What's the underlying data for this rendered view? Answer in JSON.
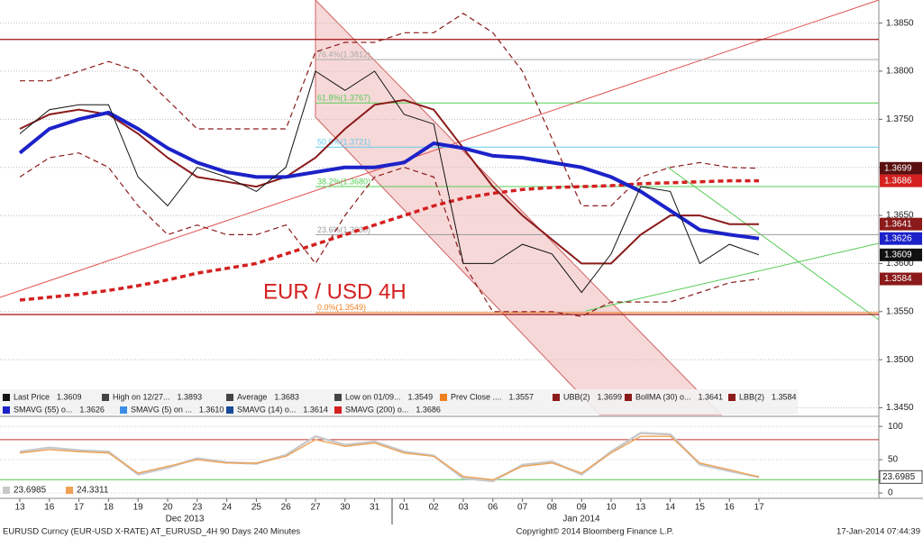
{
  "chart_data": [
    {
      "type": "line",
      "title": "EUR / USD 4H",
      "categories": [
        "13",
        "16",
        "17",
        "18",
        "19",
        "20",
        "23",
        "24",
        "25",
        "26",
        "27",
        "30",
        "31",
        "01",
        "02",
        "03",
        "06",
        "07",
        "08",
        "09",
        "10",
        "13",
        "14",
        "15",
        "16",
        "17"
      ],
      "month_labels": [
        "Dec 2013",
        "Jan 2014"
      ],
      "ylim": [
        1.3443,
        1.3874
      ],
      "yticks": [
        {
          "value": 1.345,
          "label": "1.3450"
        },
        {
          "value": 1.35,
          "label": "1.3500"
        },
        {
          "value": 1.355,
          "label": "1.3550"
        },
        {
          "value": 1.36,
          "label": "1.3600"
        },
        {
          "value": 1.365,
          "label": "1.3650"
        },
        {
          "value": 1.37,
          "label": "1.3700"
        },
        {
          "value": 1.375,
          "label": "1.3750"
        },
        {
          "value": 1.38,
          "label": "1.3800"
        },
        {
          "value": 1.385,
          "label": "1.3850"
        }
      ],
      "grid": true,
      "series": [
        {
          "name": "Last Price",
          "legend_value": "1.3609",
          "color": "#111111",
          "values": [
            1.3735,
            1.376,
            1.3765,
            1.3765,
            1.369,
            1.366,
            1.37,
            1.369,
            1.3675,
            1.37,
            1.38,
            1.378,
            1.38,
            1.3755,
            1.3745,
            1.36,
            1.36,
            1.362,
            1.361,
            1.357,
            1.361,
            1.368,
            1.3675,
            1.36,
            1.362,
            1.3609
          ]
        },
        {
          "name": "SMAVG (55) o...",
          "legend_value": "1.3626",
          "color": "#1c22c8",
          "values": [
            1.3715,
            1.374,
            1.375,
            1.3757,
            1.374,
            1.372,
            1.3705,
            1.3695,
            1.369,
            1.369,
            1.3695,
            1.37,
            1.37,
            1.3705,
            1.3725,
            1.372,
            1.3712,
            1.371,
            1.3705,
            1.37,
            1.369,
            1.3675,
            1.3655,
            1.3635,
            1.363,
            1.3626
          ]
        },
        {
          "name": "SMAVG (200) o...",
          "legend_value": "1.3686",
          "color": "#d42020",
          "dash": true,
          "values": [
            1.3562,
            1.3565,
            1.3568,
            1.3572,
            1.3577,
            1.3583,
            1.359,
            1.3595,
            1.36,
            1.361,
            1.362,
            1.363,
            1.364,
            1.365,
            1.366,
            1.3668,
            1.3673,
            1.3677,
            1.3679,
            1.368,
            1.3681,
            1.3683,
            1.3684,
            1.3685,
            1.3686,
            1.3686
          ]
        },
        {
          "name": "BollMA (30) o...",
          "legend_value": "1.3641",
          "color": "#8b1a1a",
          "values": [
            1.374,
            1.3755,
            1.376,
            1.3755,
            1.3735,
            1.371,
            1.369,
            1.3685,
            1.368,
            1.369,
            1.371,
            1.374,
            1.3765,
            1.377,
            1.376,
            1.372,
            1.368,
            1.365,
            1.3625,
            1.36,
            1.36,
            1.363,
            1.365,
            1.365,
            1.3641,
            1.3641
          ]
        },
        {
          "name": "UBB(2)",
          "legend_value": "1.3699",
          "color": "#8b1a1a",
          "dash": true,
          "values": [
            1.379,
            1.379,
            1.38,
            1.381,
            1.38,
            1.377,
            1.374,
            1.374,
            1.374,
            1.374,
            1.382,
            1.383,
            1.383,
            1.384,
            1.384,
            1.386,
            1.384,
            1.38,
            1.373,
            1.366,
            1.366,
            1.369,
            1.37,
            1.3705,
            1.37,
            1.3699
          ]
        },
        {
          "name": "LBB(2)",
          "legend_value": "1.3584",
          "color": "#8b1a1a",
          "dash": true,
          "values": [
            1.369,
            1.371,
            1.3715,
            1.37,
            1.366,
            1.363,
            1.364,
            1.363,
            1.363,
            1.364,
            1.36,
            1.365,
            1.369,
            1.37,
            1.369,
            1.36,
            1.355,
            1.355,
            1.355,
            1.3545,
            1.356,
            1.356,
            1.356,
            1.357,
            1.358,
            1.3584
          ]
        }
      ],
      "legend_extra": [
        {
          "name": "High on 12/27...",
          "legend_value": "1.3893"
        },
        {
          "name": "Average",
          "legend_value": "1.3683"
        },
        {
          "name": "Low on 01/09...",
          "legend_value": "1.3549"
        },
        {
          "name": "Prev Close ....",
          "legend_value": "1.3557",
          "color": "#f08020"
        },
        {
          "name": "SMAVG (5) on ...",
          "legend_value": "1.3610",
          "color": "#3a8ee6"
        },
        {
          "name": "SMAVG (14) o...",
          "legend_value": "1.3614",
          "color": "#1a4a9a"
        }
      ],
      "price_boxes": [
        {
          "value": 1.3699,
          "color": "#5a1010"
        },
        {
          "value": 1.3686,
          "color": "#d42020"
        },
        {
          "value": 1.3641,
          "color": "#8b1a1a"
        },
        {
          "value": 1.3626,
          "color": "#1c22c8"
        },
        {
          "value": 1.3609,
          "color": "#111111"
        },
        {
          "value": 1.3584,
          "color": "#8b1a1a"
        }
      ],
      "fib_levels": [
        {
          "value": 1.3812,
          "label": "76.4%(1.3812)",
          "color": "#aaaaaa"
        },
        {
          "value": 1.3767,
          "label": "61.8%(1.3767)",
          "color": "#55cc55"
        },
        {
          "value": 1.3721,
          "label": "50.0%(1.3721)",
          "color": "#66ccee"
        },
        {
          "value": 1.368,
          "label": "38.2%(1.3680)",
          "color": "#55cc55"
        },
        {
          "value": 1.363,
          "label": "23.6%(1.3630)",
          "color": "#999999"
        },
        {
          "value": 1.3549,
          "label": "0.0%(1.3549)",
          "color": "#f08020"
        }
      ],
      "levels": [
        {
          "value": 1.3833,
          "color": "#a01010"
        },
        {
          "value": 1.3547,
          "color": "#a01010"
        }
      ]
    },
    {
      "type": "line",
      "ylim": [
        -8,
        111
      ],
      "yticks": [
        0,
        50,
        100
      ],
      "levels": [
        {
          "value": 80,
          "color": "#c03030"
        },
        {
          "value": 20,
          "color": "#50c050"
        }
      ],
      "series": [
        {
          "name": "23.6985",
          "color": "#c8c8c8",
          "values": [
            62,
            68,
            64,
            62,
            28,
            38,
            52,
            46,
            44,
            57,
            85,
            72,
            77,
            62,
            56,
            22,
            18,
            42,
            47,
            28,
            62,
            90,
            88,
            43,
            33,
            24
          ]
        },
        {
          "name": "24.3311",
          "color": "#f0a050",
          "values": [
            60,
            65,
            62,
            60,
            30,
            40,
            50,
            45,
            45,
            55,
            80,
            70,
            75,
            60,
            55,
            25,
            20,
            40,
            45,
            30,
            60,
            85,
            85,
            45,
            35,
            24
          ]
        }
      ]
    }
  ],
  "footer": {
    "left": "EURUSD Curncy (EUR-USD X-RATE) AT_EURUSD_4H 90 Days 240 Minutes",
    "center": "Copyright© 2014 Bloomberg Finance L.P.",
    "right": "17-Jan-2014 07:44:39"
  }
}
